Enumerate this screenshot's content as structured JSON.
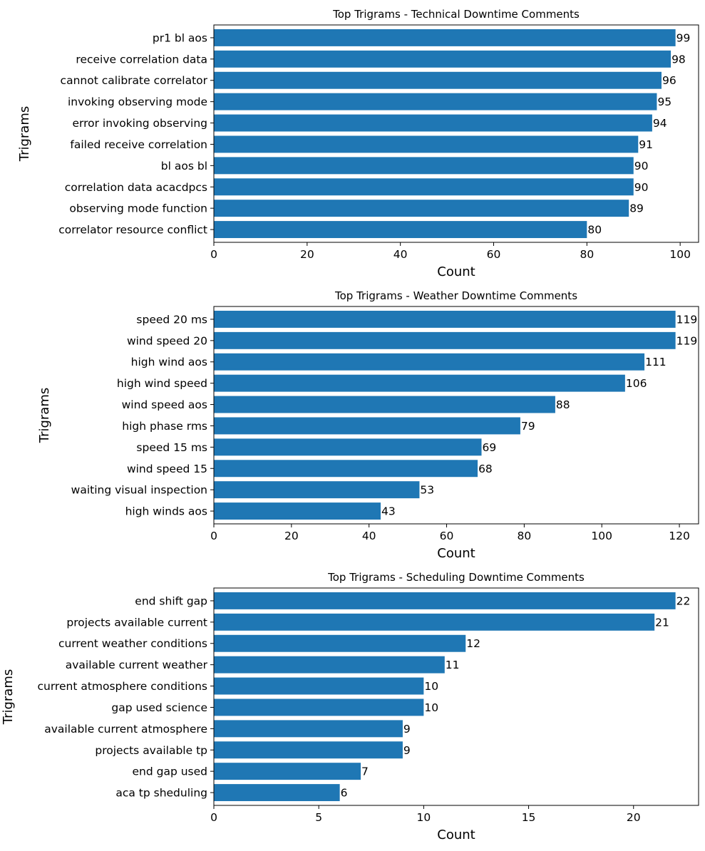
{
  "bar_color": "#1f77b4",
  "chart_data": [
    {
      "type": "bar",
      "orientation": "horizontal",
      "title": "Top Trigrams - Technical Downtime Comments",
      "xlabel": "Count",
      "ylabel": "Trigrams",
      "categories": [
        "pr1 bl aos",
        "receive correlation data",
        "cannot calibrate correlator",
        "invoking observing mode",
        "error invoking observing",
        "failed receive correlation",
        "bl aos bl",
        "correlation data acacdpcs",
        "observing mode function",
        "correlator resource conflict"
      ],
      "values": [
        99,
        98,
        96,
        95,
        94,
        91,
        90,
        90,
        89,
        80
      ],
      "value_labels": [
        "99",
        "98",
        "96",
        "95",
        "94",
        "91",
        "90",
        "90",
        "89",
        "80"
      ],
      "xticks": [
        0,
        20,
        40,
        60,
        80,
        100
      ],
      "xtick_labels": [
        "0",
        "20",
        "40",
        "60",
        "80",
        "100"
      ],
      "xlim": [
        0,
        103.95
      ],
      "grid": false,
      "legend": "none"
    },
    {
      "type": "bar",
      "orientation": "horizontal",
      "title": "Top Trigrams - Weather Downtime Comments",
      "xlabel": "Count",
      "ylabel": "Trigrams",
      "categories": [
        "speed 20 ms",
        "wind speed 20",
        "high wind aos",
        "high wind speed",
        "wind speed aos",
        "high phase rms",
        "speed 15 ms",
        "wind speed 15",
        "waiting visual inspection",
        "high winds aos"
      ],
      "values": [
        119,
        119,
        111,
        106,
        88,
        79,
        69,
        68,
        53,
        43
      ],
      "value_labels": [
        "119",
        "119",
        "111",
        "106",
        "88",
        "79",
        "69",
        "68",
        "53",
        "43"
      ],
      "xticks": [
        0,
        20,
        40,
        60,
        80,
        100,
        120
      ],
      "xtick_labels": [
        "0",
        "20",
        "40",
        "60",
        "80",
        "100",
        "120"
      ],
      "xlim": [
        0,
        124.95
      ],
      "grid": false,
      "legend": "none"
    },
    {
      "type": "bar",
      "orientation": "horizontal",
      "title": "Top Trigrams - Scheduling Downtime Comments",
      "xlabel": "Count",
      "ylabel": "Trigrams",
      "categories": [
        "end shift gap",
        "projects available current",
        "current weather conditions",
        "available current weather",
        "current atmosphere conditions",
        "gap used science",
        "available current atmosphere",
        "projects available tp",
        "end gap used",
        "aca tp sheduling"
      ],
      "values": [
        22,
        21,
        12,
        11,
        10,
        10,
        9,
        9,
        7,
        6
      ],
      "value_labels": [
        "22",
        "21",
        "12",
        "11",
        "10",
        "10",
        "9",
        "9",
        "7",
        "6"
      ],
      "xticks": [
        0,
        5,
        10,
        15,
        20
      ],
      "xtick_labels": [
        "0",
        "5",
        "10",
        "15",
        "20"
      ],
      "xlim": [
        0,
        23.1
      ],
      "grid": false,
      "legend": "none"
    }
  ]
}
